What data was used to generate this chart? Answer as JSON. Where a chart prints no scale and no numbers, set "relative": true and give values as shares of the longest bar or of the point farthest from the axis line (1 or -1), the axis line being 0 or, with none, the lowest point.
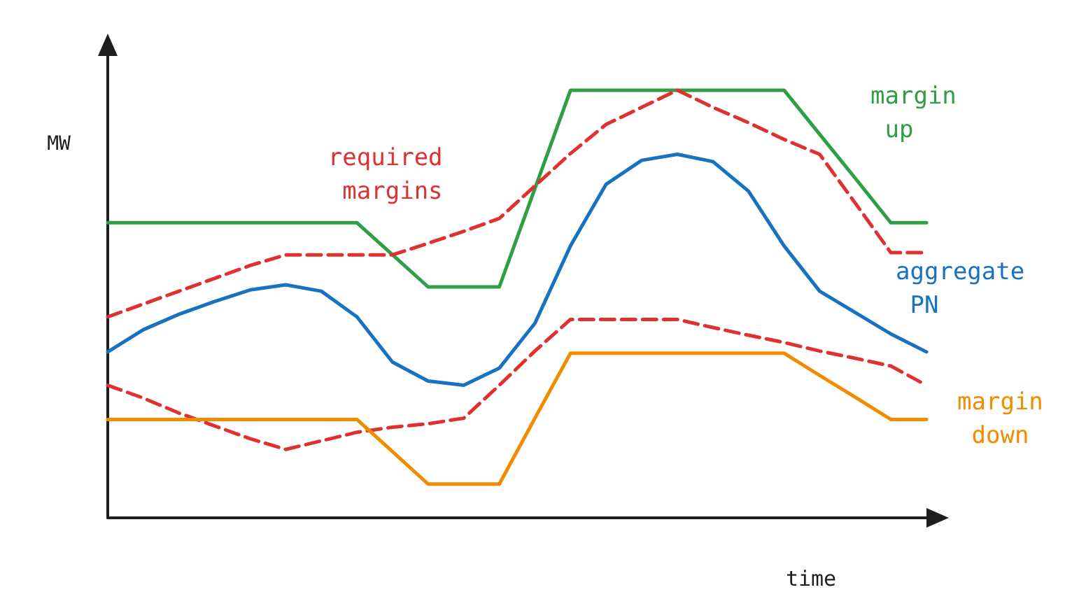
{
  "chart_data": {
    "type": "line",
    "relative": true,
    "xlabel": "time",
    "ylabel": "MW",
    "marker": "none",
    "legend": false,
    "categories": [
      null,
      null,
      null,
      null,
      null,
      null,
      null,
      null,
      null,
      null,
      null,
      null,
      null,
      null,
      null,
      null,
      null,
      null,
      null,
      null,
      null,
      null,
      null,
      null
    ],
    "series": [
      {
        "name": "margin up",
        "color": "#2f9e44",
        "line_style": "solid",
        "values": [
          0.69,
          0.69,
          0.69,
          0.69,
          0.69,
          0.69,
          0.69,
          0.69,
          0.615,
          0.54,
          0.54,
          0.54,
          0.77,
          1.0,
          1.0,
          1.0,
          1.0,
          1.0,
          1.0,
          1.0,
          0.897,
          0.794,
          0.69,
          0.69
        ]
      },
      {
        "name": "required margins",
        "color": "#e03131",
        "line_style": "dashed",
        "values": [
          0.47,
          0.5,
          0.53,
          0.56,
          0.59,
          0.615,
          0.615,
          0.615,
          0.615,
          0.642,
          0.67,
          0.7,
          0.776,
          0.852,
          0.92,
          0.96,
          1.0,
          0.96,
          0.924,
          0.885,
          0.85,
          0.736,
          0.62,
          0.62
        ]
      },
      {
        "name": "aggregate PN",
        "color": "#1971c2",
        "line_style": "solid",
        "values": [
          0.388,
          0.44,
          0.476,
          0.506,
          0.533,
          0.545,
          0.53,
          0.47,
          0.364,
          0.32,
          0.31,
          0.35,
          0.455,
          0.636,
          0.78,
          0.836,
          0.85,
          0.833,
          0.764,
          0.636,
          0.53,
          0.48,
          0.43,
          0.388
        ]
      },
      {
        "color": "#e03131",
        "line_style": "dashed",
        "values": [
          0.31,
          0.28,
          0.245,
          0.215,
          0.185,
          0.16,
          0.18,
          0.2,
          0.212,
          0.22,
          0.233,
          0.31,
          0.39,
          0.464,
          0.464,
          0.464,
          0.464,
          0.445,
          0.427,
          0.41,
          0.39,
          0.373,
          0.355,
          0.31
        ]
      },
      {
        "name": "margin down",
        "color": "#f08c00",
        "line_style": "solid",
        "values": [
          0.23,
          0.23,
          0.23,
          0.23,
          0.23,
          0.23,
          0.23,
          0.23,
          0.155,
          0.079,
          0.079,
          0.079,
          0.233,
          0.385,
          0.385,
          0.385,
          0.385,
          0.385,
          0.385,
          0.385,
          0.333,
          0.282,
          0.23,
          0.23
        ]
      }
    ]
  }
}
